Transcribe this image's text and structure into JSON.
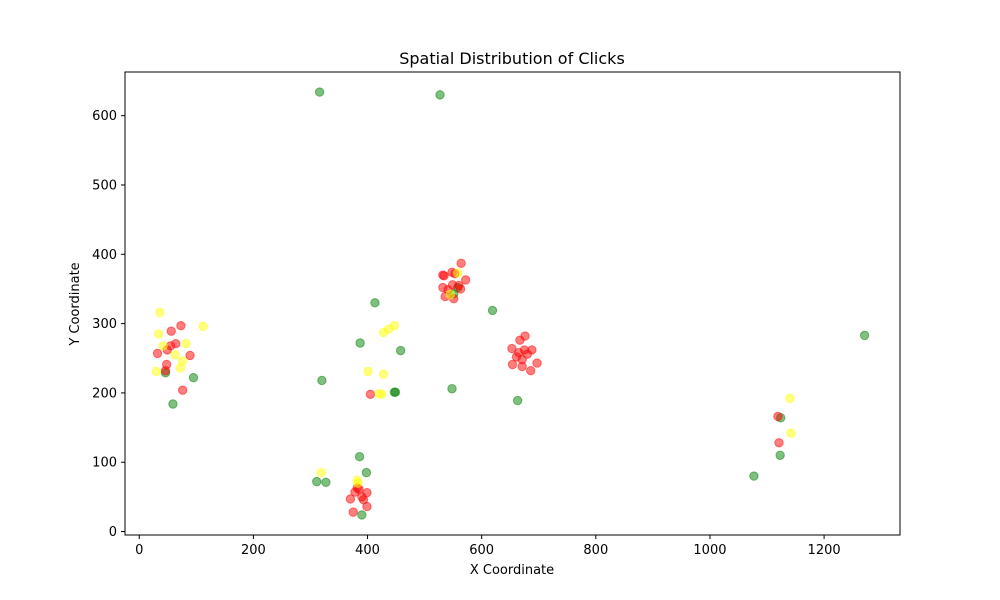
{
  "chart_data": {
    "type": "scatter",
    "title": "Spatial Distribution of Clicks",
    "xlabel": "X Coordinate",
    "ylabel": "Y Coordinate",
    "xlim": [
      -25,
      1333
    ],
    "ylim": [
      -5,
      663
    ],
    "xticks": [
      0,
      200,
      400,
      600,
      800,
      1000,
      1200
    ],
    "yticks": [
      0,
      100,
      200,
      300,
      400,
      500,
      600
    ],
    "grid": false,
    "colors": {
      "green": "#008000",
      "red": "#ff0000",
      "yellow": "#ffff00"
    },
    "series": [
      {
        "name": "green",
        "color": "#008000",
        "points": [
          [
            316,
            634
          ],
          [
            527,
            630
          ],
          [
            1271,
            283
          ],
          [
            413,
            330
          ],
          [
            619,
            319
          ],
          [
            387,
            272
          ],
          [
            458,
            261
          ],
          [
            46,
            229
          ],
          [
            95,
            222
          ],
          [
            59,
            184
          ],
          [
            320,
            218
          ],
          [
            548,
            206
          ],
          [
            447,
            201
          ],
          [
            449,
            201
          ],
          [
            663,
            189
          ],
          [
            1124,
            164
          ],
          [
            1123,
            110
          ],
          [
            1077,
            80
          ],
          [
            386,
            108
          ],
          [
            398,
            85
          ],
          [
            311,
            72
          ],
          [
            327,
            71
          ],
          [
            390,
            24
          ],
          [
            551,
            343
          ],
          [
            558,
            352
          ]
        ]
      },
      {
        "name": "red",
        "color": "#ff0000",
        "points": [
          [
            532,
            370
          ],
          [
            534,
            369
          ],
          [
            548,
            374
          ],
          [
            553,
            372
          ],
          [
            564,
            387
          ],
          [
            572,
            363
          ],
          [
            532,
            352
          ],
          [
            549,
            356
          ],
          [
            560,
            355
          ],
          [
            563,
            350
          ],
          [
            536,
            339
          ],
          [
            551,
            336
          ],
          [
            541,
            349
          ],
          [
            653,
            264
          ],
          [
            667,
            276
          ],
          [
            676,
            282
          ],
          [
            688,
            262
          ],
          [
            661,
            252
          ],
          [
            665,
            258
          ],
          [
            671,
            248
          ],
          [
            680,
            256
          ],
          [
            654,
            241
          ],
          [
            671,
            238
          ],
          [
            686,
            232
          ],
          [
            697,
            243
          ],
          [
            675,
            262
          ],
          [
            73,
            297
          ],
          [
            56,
            289
          ],
          [
            64,
            271
          ],
          [
            55,
            268
          ],
          [
            49,
            262
          ],
          [
            32,
            257
          ],
          [
            89,
            254
          ],
          [
            48,
            241
          ],
          [
            46,
            232
          ],
          [
            76,
            204
          ],
          [
            405,
            198
          ],
          [
            1119,
            166
          ],
          [
            1121,
            128
          ],
          [
            382,
            63
          ],
          [
            390,
            50
          ],
          [
            399,
            56
          ],
          [
            370,
            47
          ],
          [
            393,
            46
          ],
          [
            399,
            36
          ],
          [
            375,
            28
          ],
          [
            385,
            61
          ],
          [
            378,
            57
          ]
        ]
      },
      {
        "name": "yellow",
        "color": "#ffff00",
        "points": [
          [
            36,
            316
          ],
          [
            112,
            296
          ],
          [
            34,
            285
          ],
          [
            42,
            268
          ],
          [
            82,
            271
          ],
          [
            63,
            255
          ],
          [
            76,
            246
          ],
          [
            72,
            236
          ],
          [
            30,
            231
          ],
          [
            428,
            287
          ],
          [
            437,
            292
          ],
          [
            447,
            297
          ],
          [
            401,
            231
          ],
          [
            428,
            227
          ],
          [
            420,
            199
          ],
          [
            425,
            198
          ],
          [
            1140,
            192
          ],
          [
            1142,
            142
          ],
          [
            319,
            85
          ],
          [
            382,
            74
          ],
          [
            383,
            70
          ],
          [
            558,
            373
          ],
          [
            545,
            342
          ]
        ]
      }
    ]
  }
}
